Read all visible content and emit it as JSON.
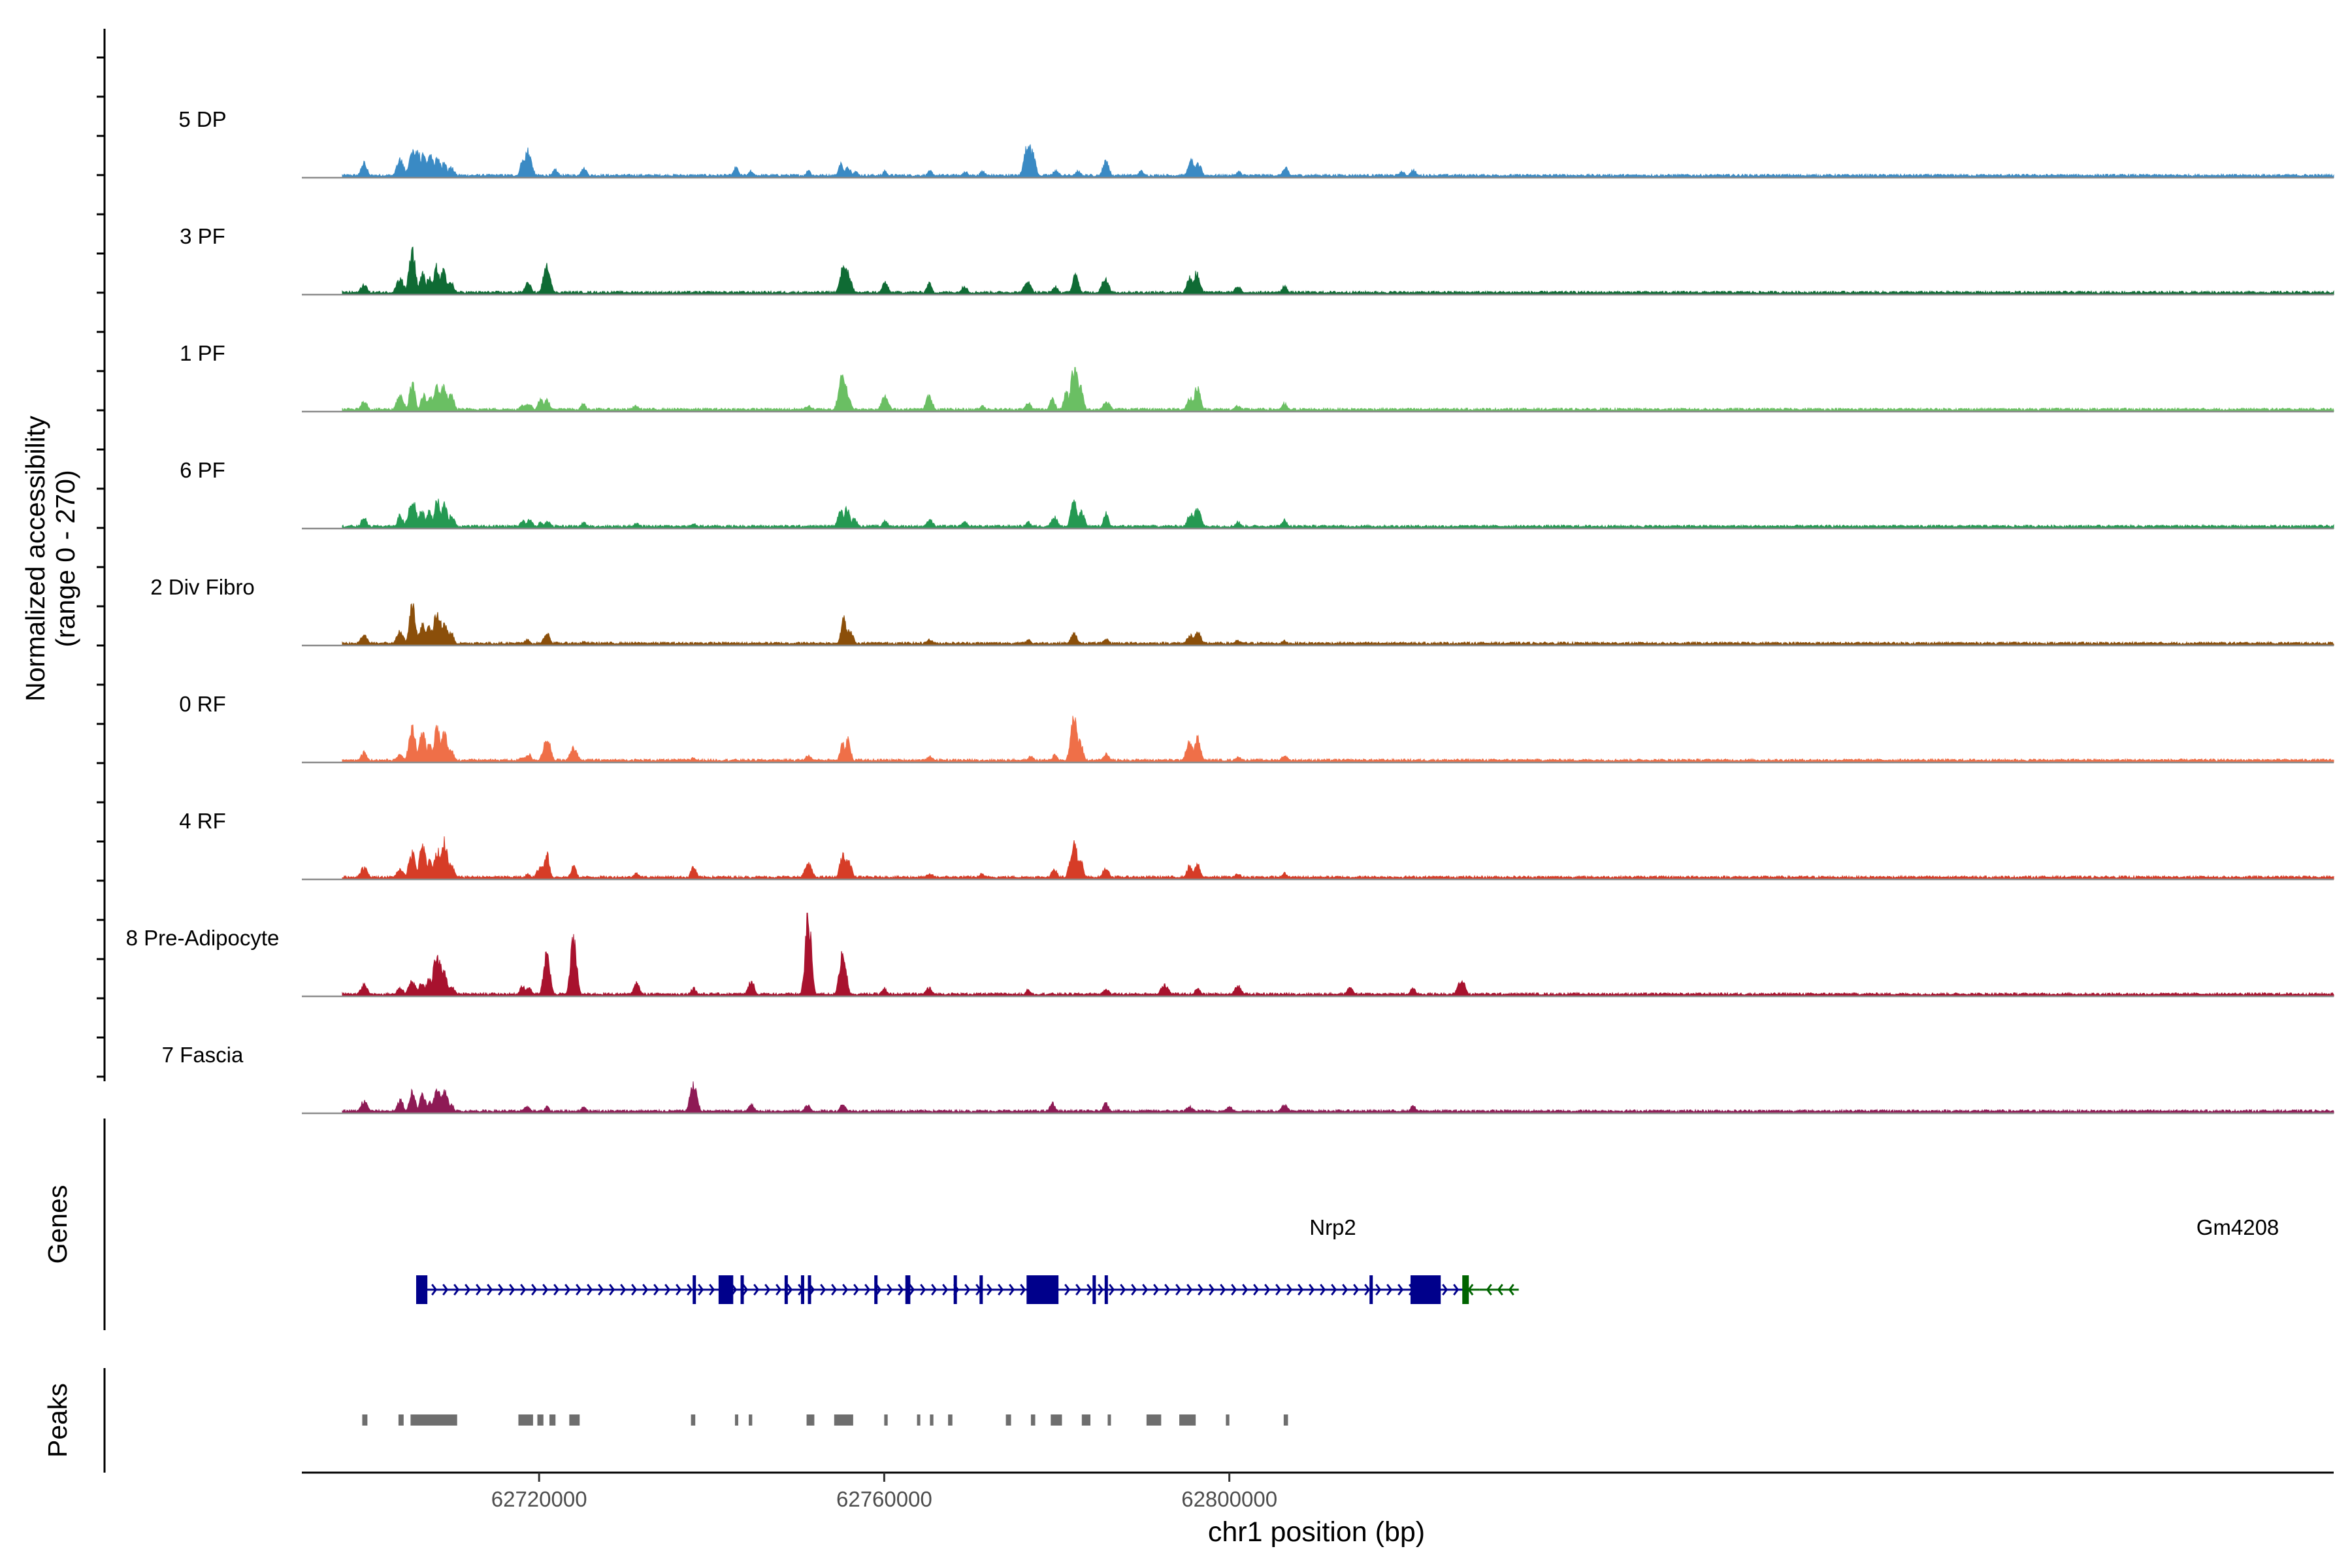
{
  "chart_data": {
    "type": "area",
    "title": "",
    "region": "chr1",
    "xlabel": "chr1 position (bp)",
    "ylabel_line1": "Normalized accessibility",
    "ylabel_line2": "(range 0 - 270)",
    "xlim": [
      62692500,
      62928000
    ],
    "x_ticks": [
      62720000,
      62760000,
      62800000
    ],
    "x_tick_labels": [
      "62720000",
      "62760000",
      "62800000"
    ],
    "y_range": [
      0,
      270
    ],
    "tracks": [
      {
        "name": "5 DP",
        "color": "#3a8ac4",
        "peaks": [
          [
            62699700,
            0.18
          ],
          [
            62703900,
            0.22
          ],
          [
            62705300,
            0.3
          ],
          [
            62705900,
            0.34
          ],
          [
            62706600,
            0.27
          ],
          [
            62707400,
            0.25
          ],
          [
            62708200,
            0.22
          ],
          [
            62709000,
            0.18
          ],
          [
            62709800,
            0.12
          ],
          [
            62718100,
            0.2
          ],
          [
            62718700,
            0.32
          ],
          [
            62721900,
            0.1
          ],
          [
            62725200,
            0.12
          ],
          [
            62742800,
            0.12
          ],
          [
            62744600,
            0.08
          ],
          [
            62751200,
            0.08
          ],
          [
            62755000,
            0.16
          ],
          [
            62755800,
            0.12
          ],
          [
            62756700,
            0.08
          ],
          [
            62760100,
            0.08
          ],
          [
            62765300,
            0.08
          ],
          [
            62769400,
            0.07
          ],
          [
            62771400,
            0.08
          ],
          [
            62776700,
            0.4
          ],
          [
            62777200,
            0.3
          ],
          [
            62779900,
            0.08
          ],
          [
            62782500,
            0.08
          ],
          [
            62785700,
            0.19
          ],
          [
            62789800,
            0.08
          ],
          [
            62795600,
            0.2
          ],
          [
            62796400,
            0.16
          ],
          [
            62801100,
            0.07
          ],
          [
            62806500,
            0.12
          ],
          [
            62820000,
            0.07
          ],
          [
            62821300,
            0.1
          ]
        ]
      },
      {
        "name": "3 PF",
        "color": "#0f6b34",
        "peaks": [
          [
            62699700,
            0.12
          ],
          [
            62703900,
            0.18
          ],
          [
            62705300,
            0.5
          ],
          [
            62706500,
            0.25
          ],
          [
            62707300,
            0.2
          ],
          [
            62708100,
            0.34
          ],
          [
            62708900,
            0.3
          ],
          [
            62709700,
            0.15
          ],
          [
            62718700,
            0.14
          ],
          [
            62720900,
            0.35
          ],
          [
            62755400,
            0.38
          ],
          [
            62756000,
            0.18
          ],
          [
            62760100,
            0.16
          ],
          [
            62765200,
            0.14
          ],
          [
            62769300,
            0.1
          ],
          [
            62776600,
            0.15
          ],
          [
            62779800,
            0.1
          ],
          [
            62782200,
            0.24
          ],
          [
            62785600,
            0.2
          ],
          [
            62795400,
            0.2
          ],
          [
            62796200,
            0.26
          ],
          [
            62801000,
            0.1
          ],
          [
            62806400,
            0.1
          ]
        ]
      },
      {
        "name": "1 PF",
        "color": "#6abf63",
        "peaks": [
          [
            62699700,
            0.12
          ],
          [
            62703900,
            0.18
          ],
          [
            62705300,
            0.34
          ],
          [
            62706600,
            0.2
          ],
          [
            62707400,
            0.18
          ],
          [
            62708200,
            0.3
          ],
          [
            62709000,
            0.3
          ],
          [
            62709800,
            0.2
          ],
          [
            62718100,
            0.08
          ],
          [
            62718800,
            0.1
          ],
          [
            62720200,
            0.14
          ],
          [
            62720900,
            0.14
          ],
          [
            62725100,
            0.1
          ],
          [
            62731200,
            0.07
          ],
          [
            62751200,
            0.07
          ],
          [
            62755200,
            0.45
          ],
          [
            62755700,
            0.2
          ],
          [
            62760100,
            0.18
          ],
          [
            62765200,
            0.18
          ],
          [
            62771400,
            0.07
          ],
          [
            62776700,
            0.1
          ],
          [
            62779500,
            0.15
          ],
          [
            62781100,
            0.25
          ],
          [
            62782100,
            0.55
          ],
          [
            62782800,
            0.3
          ],
          [
            62785800,
            0.12
          ],
          [
            62795500,
            0.16
          ],
          [
            62796300,
            0.3
          ],
          [
            62801000,
            0.07
          ],
          [
            62806400,
            0.1
          ]
        ]
      },
      {
        "name": "6 PF",
        "color": "#249952",
        "peaks": [
          [
            62699700,
            0.15
          ],
          [
            62703900,
            0.16
          ],
          [
            62705300,
            0.34
          ],
          [
            62706400,
            0.22
          ],
          [
            62707300,
            0.2
          ],
          [
            62708200,
            0.34
          ],
          [
            62709000,
            0.3
          ],
          [
            62709800,
            0.15
          ],
          [
            62718100,
            0.1
          ],
          [
            62718900,
            0.1
          ],
          [
            62720200,
            0.08
          ],
          [
            62721000,
            0.08
          ],
          [
            62725200,
            0.07
          ],
          [
            62731300,
            0.06
          ],
          [
            62737900,
            0.06
          ],
          [
            62755000,
            0.2
          ],
          [
            62755700,
            0.25
          ],
          [
            62756500,
            0.12
          ],
          [
            62760100,
            0.1
          ],
          [
            62765300,
            0.1
          ],
          [
            62769300,
            0.08
          ],
          [
            62776700,
            0.08
          ],
          [
            62779700,
            0.14
          ],
          [
            62782000,
            0.36
          ],
          [
            62782800,
            0.2
          ],
          [
            62785700,
            0.18
          ],
          [
            62795500,
            0.18
          ],
          [
            62796300,
            0.22
          ],
          [
            62801000,
            0.08
          ],
          [
            62806400,
            0.1
          ]
        ]
      },
      {
        "name": "2 Div Fibro",
        "color": "#8b4f0a",
        "peaks": [
          [
            62699700,
            0.12
          ],
          [
            62703900,
            0.18
          ],
          [
            62705300,
            0.52
          ],
          [
            62706500,
            0.25
          ],
          [
            62707300,
            0.22
          ],
          [
            62708200,
            0.4
          ],
          [
            62709000,
            0.26
          ],
          [
            62709800,
            0.15
          ],
          [
            62718600,
            0.07
          ],
          [
            62720900,
            0.15
          ],
          [
            62725200,
            0.05
          ],
          [
            62755300,
            0.32
          ],
          [
            62756000,
            0.18
          ],
          [
            62765200,
            0.07
          ],
          [
            62776700,
            0.07
          ],
          [
            62782000,
            0.16
          ],
          [
            62785700,
            0.08
          ],
          [
            62795500,
            0.12
          ],
          [
            62796300,
            0.16
          ],
          [
            62801000,
            0.06
          ],
          [
            62806400,
            0.06
          ]
        ]
      },
      {
        "name": "0 RF",
        "color": "#ef6f48",
        "peaks": [
          [
            62699700,
            0.12
          ],
          [
            62703900,
            0.1
          ],
          [
            62705300,
            0.4
          ],
          [
            62706500,
            0.35
          ],
          [
            62707300,
            0.22
          ],
          [
            62708200,
            0.42
          ],
          [
            62709000,
            0.35
          ],
          [
            62709800,
            0.15
          ],
          [
            62718100,
            0.07
          ],
          [
            62718800,
            0.1
          ],
          [
            62720900,
            0.3
          ],
          [
            62724000,
            0.18
          ],
          [
            62737900,
            0.06
          ],
          [
            62751200,
            0.08
          ],
          [
            62755200,
            0.22
          ],
          [
            62755800,
            0.28
          ],
          [
            62765300,
            0.07
          ],
          [
            62777000,
            0.07
          ],
          [
            62779800,
            0.1
          ],
          [
            62782000,
            0.52
          ],
          [
            62782700,
            0.25
          ],
          [
            62785700,
            0.1
          ],
          [
            62795400,
            0.25
          ],
          [
            62796300,
            0.3
          ],
          [
            62801000,
            0.06
          ],
          [
            62806400,
            0.08
          ]
        ]
      },
      {
        "name": "4 RF",
        "color": "#d63c27",
        "peaks": [
          [
            62699700,
            0.14
          ],
          [
            62703900,
            0.12
          ],
          [
            62705300,
            0.32
          ],
          [
            62706500,
            0.4
          ],
          [
            62707300,
            0.22
          ],
          [
            62708200,
            0.35
          ],
          [
            62709000,
            0.45
          ],
          [
            62709800,
            0.18
          ],
          [
            62718700,
            0.07
          ],
          [
            62720200,
            0.15
          ],
          [
            62720900,
            0.3
          ],
          [
            62724000,
            0.15
          ],
          [
            62731300,
            0.07
          ],
          [
            62737900,
            0.15
          ],
          [
            62751200,
            0.18
          ],
          [
            62755200,
            0.28
          ],
          [
            62755800,
            0.25
          ],
          [
            62765300,
            0.07
          ],
          [
            62771300,
            0.07
          ],
          [
            62779700,
            0.12
          ],
          [
            62782000,
            0.42
          ],
          [
            62782700,
            0.25
          ],
          [
            62785700,
            0.14
          ],
          [
            62795400,
            0.16
          ],
          [
            62796300,
            0.18
          ],
          [
            62801000,
            0.07
          ],
          [
            62806400,
            0.08
          ]
        ]
      },
      {
        "name": "8 Pre-Adipocyte",
        "color": "#a8122e",
        "peaks": [
          [
            62699700,
            0.14
          ],
          [
            62703900,
            0.1
          ],
          [
            62705300,
            0.18
          ],
          [
            62706400,
            0.15
          ],
          [
            62707300,
            0.2
          ],
          [
            62708200,
            0.52
          ],
          [
            62709000,
            0.3
          ],
          [
            62709800,
            0.12
          ],
          [
            62718100,
            0.12
          ],
          [
            62718800,
            0.1
          ],
          [
            62720900,
            0.52
          ],
          [
            62724000,
            0.7
          ],
          [
            62731300,
            0.16
          ],
          [
            62737900,
            0.1
          ],
          [
            62744600,
            0.18
          ],
          [
            62751200,
            0.95
          ],
          [
            62755200,
            0.56
          ],
          [
            62760000,
            0.1
          ],
          [
            62765200,
            0.1
          ],
          [
            62776700,
            0.08
          ],
          [
            62785700,
            0.08
          ],
          [
            62792500,
            0.14
          ],
          [
            62796300,
            0.1
          ],
          [
            62801000,
            0.12
          ],
          [
            62814000,
            0.1
          ],
          [
            62821300,
            0.1
          ],
          [
            62826900,
            0.2
          ]
        ]
      },
      {
        "name": "7 Fascia",
        "color": "#8e1a55",
        "peaks": [
          [
            62699700,
            0.14
          ],
          [
            62703900,
            0.16
          ],
          [
            62705300,
            0.26
          ],
          [
            62706500,
            0.22
          ],
          [
            62707300,
            0.14
          ],
          [
            62708200,
            0.28
          ],
          [
            62709000,
            0.26
          ],
          [
            62709800,
            0.12
          ],
          [
            62718600,
            0.08
          ],
          [
            62720900,
            0.08
          ],
          [
            62725200,
            0.08
          ],
          [
            62737900,
            0.35
          ],
          [
            62744600,
            0.1
          ],
          [
            62751100,
            0.1
          ],
          [
            62755200,
            0.1
          ],
          [
            62779500,
            0.12
          ],
          [
            62785700,
            0.12
          ],
          [
            62795400,
            0.08
          ],
          [
            62800000,
            0.08
          ],
          [
            62806400,
            0.1
          ],
          [
            62821300,
            0.1
          ]
        ]
      }
    ],
    "genes": [
      {
        "name": "Nrp2",
        "strand": "+",
        "color": "#00008b",
        "start": 62706000,
        "end": 62828000,
        "exons": [
          [
            62706000,
            62707050
          ],
          [
            62740800,
            62742500
          ],
          [
            62776500,
            62780200
          ],
          [
            62821000,
            62824500
          ]
        ],
        "small_exons": [
          62705900,
          62737950,
          62743500,
          62748600,
          62750500,
          62751300,
          62759000,
          62762600,
          62762800,
          62768200,
          62771200,
          62784300,
          62785700,
          62816400
        ]
      },
      {
        "name": "Gm4208",
        "strand": "-",
        "color": "#006400",
        "start": 62827000,
        "end": 62829000,
        "exons": [
          [
            62827000,
            62827400
          ]
        ],
        "small_exons": []
      }
    ],
    "peak_regions": [
      [
        62699500,
        62700100
      ],
      [
        62703700,
        62704300
      ],
      [
        62705100,
        62710500
      ],
      [
        62717600,
        62719300
      ],
      [
        62719800,
        62720500
      ],
      [
        62721200,
        62721900
      ],
      [
        62723500,
        62724700
      ],
      [
        62737600,
        62738100
      ],
      [
        62742700,
        62742950
      ],
      [
        62744300,
        62744700
      ],
      [
        62751000,
        62751900
      ],
      [
        62754200,
        62756400
      ],
      [
        62760000,
        62760400
      ],
      [
        62763800,
        62764000
      ],
      [
        62765300,
        62765700
      ],
      [
        62767400,
        62767900
      ],
      [
        62774100,
        62774700
      ],
      [
        62777000,
        62777500
      ],
      [
        62779300,
        62780600
      ],
      [
        62782900,
        62783900
      ],
      [
        62785900,
        62786200
      ],
      [
        62790400,
        62792100
      ],
      [
        62794200,
        62796100
      ],
      [
        62799600,
        62800000
      ],
      [
        62806300,
        62806800
      ]
    ]
  }
}
